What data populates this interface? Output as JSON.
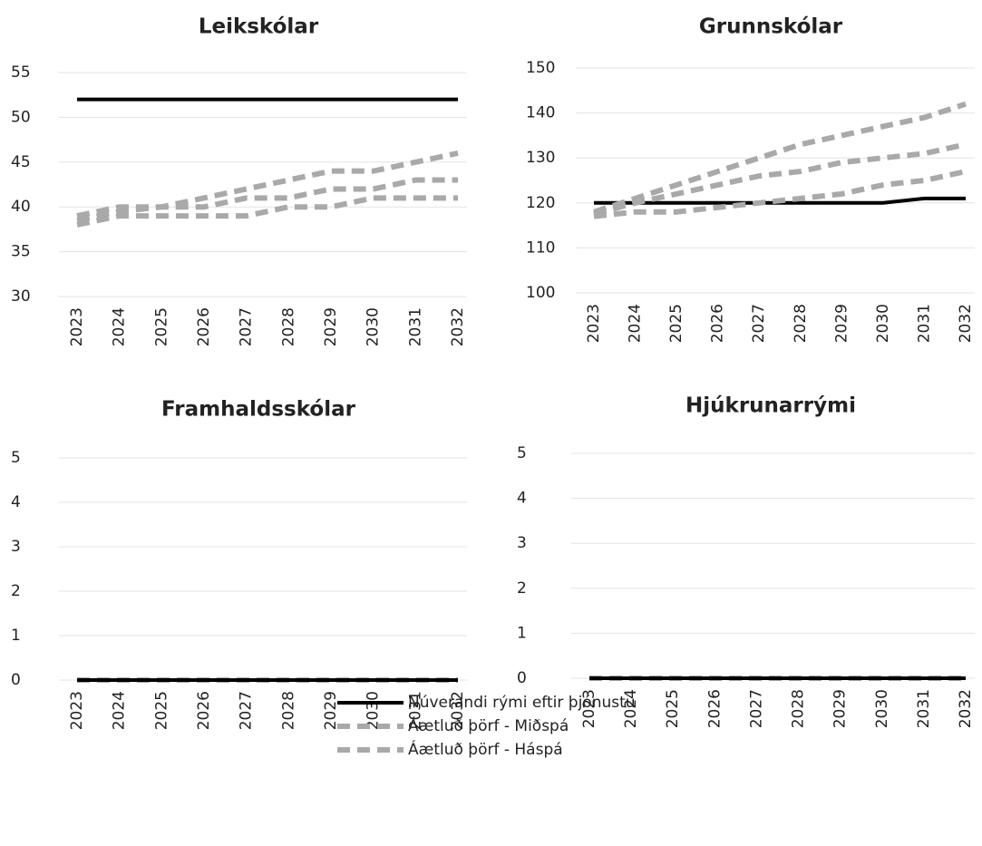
{
  "chart_data": [
    {
      "type": "line",
      "title": "Leikskólar",
      "x": [
        2023,
        2024,
        2025,
        2026,
        2027,
        2028,
        2029,
        2030,
        2031,
        2032
      ],
      "xlim": [
        2023,
        2032
      ],
      "ylim": [
        30,
        55
      ],
      "yticks": [
        30,
        35,
        40,
        45,
        50,
        55
      ],
      "grid": true,
      "series": [
        {
          "name": "Núverandi rými eftir þjónustu",
          "color": "#000000",
          "dashed": false,
          "values": [
            52,
            52,
            52,
            52,
            52,
            52,
            52,
            52,
            52,
            52
          ]
        },
        {
          "name": "Áætluð þörf - Miðspá",
          "color": "#a9a9a9",
          "dashed": true,
          "values": [
            38.5,
            39.5,
            40,
            40,
            41,
            41,
            42,
            42,
            43,
            43
          ]
        },
        {
          "name": "Áætluð þörf - Háspá",
          "color": "#a9a9a9",
          "dashed": true,
          "values": [
            39,
            40,
            40,
            41,
            42,
            43,
            44,
            44,
            45,
            46
          ]
        },
        {
          "color": "#a9a9a9",
          "dashed": true,
          "values": [
            38,
            39,
            39,
            39,
            39,
            40,
            40,
            41,
            41,
            41
          ]
        }
      ]
    },
    {
      "type": "line",
      "title": "Grunnskólar",
      "x": [
        2023,
        2024,
        2025,
        2026,
        2027,
        2028,
        2029,
        2030,
        2031,
        2032
      ],
      "xlim": [
        2023,
        2032
      ],
      "ylim": [
        100,
        150
      ],
      "yticks": [
        100,
        110,
        120,
        130,
        140,
        150
      ],
      "grid": true,
      "series": [
        {
          "color": "#000000",
          "dashed": false,
          "values": [
            120,
            120,
            120,
            120,
            120,
            120,
            120,
            120,
            121,
            121
          ]
        },
        {
          "color": "#a9a9a9",
          "dashed": true,
          "values": [
            117.5,
            120,
            122,
            124,
            126,
            127,
            129,
            130,
            131,
            133
          ]
        },
        {
          "color": "#a9a9a9",
          "dashed": true,
          "values": [
            118,
            121,
            124,
            127,
            130,
            133,
            135,
            137,
            139,
            142
          ]
        },
        {
          "color": "#a9a9a9",
          "dashed": true,
          "values": [
            117,
            118,
            118,
            119,
            120,
            121,
            122,
            124,
            125,
            127
          ]
        }
      ]
    },
    {
      "type": "line",
      "title": "Framhaldsskólar",
      "x": [
        2023,
        2024,
        2025,
        2026,
        2027,
        2028,
        2029,
        2030,
        2031,
        2032
      ],
      "xlim": [
        2023,
        2032
      ],
      "ylim": [
        0,
        5
      ],
      "yticks": [
        0,
        1,
        2,
        3,
        4,
        5
      ],
      "grid": true,
      "series": [
        {
          "color": "#a9a9a9",
          "dashed": true,
          "values": [
            0,
            0,
            0,
            0,
            0,
            0,
            0,
            0,
            0,
            0
          ]
        },
        {
          "color": "#a9a9a9",
          "dashed": true,
          "values": [
            0,
            0,
            0,
            0,
            0,
            0,
            0,
            0,
            0,
            0
          ]
        },
        {
          "color": "#a9a9a9",
          "dashed": true,
          "values": [
            0,
            0,
            0,
            0,
            0,
            0,
            0,
            0,
            0,
            0
          ]
        },
        {
          "color": "#000000",
          "dashed": false,
          "values": [
            0,
            0,
            0,
            0,
            0,
            0,
            0,
            0,
            0,
            0
          ]
        }
      ]
    },
    {
      "type": "line",
      "title": "Hjúkrunarrými",
      "x": [
        2023,
        2024,
        2025,
        2026,
        2027,
        2028,
        2029,
        2030,
        2031,
        2032
      ],
      "xlim": [
        2023,
        2032
      ],
      "ylim": [
        0,
        5
      ],
      "yticks": [
        0,
        1,
        2,
        3,
        4,
        5
      ],
      "grid": true,
      "series": [
        {
          "color": "#a9a9a9",
          "dashed": true,
          "values": [
            0,
            0,
            0,
            0,
            0,
            0,
            0,
            0,
            0,
            0
          ]
        },
        {
          "color": "#a9a9a9",
          "dashed": true,
          "values": [
            0,
            0,
            0,
            0,
            0,
            0,
            0,
            0,
            0,
            0
          ]
        },
        {
          "color": "#a9a9a9",
          "dashed": true,
          "values": [
            0,
            0,
            0,
            0,
            0,
            0,
            0,
            0,
            0,
            0
          ]
        },
        {
          "color": "#000000",
          "dashed": false,
          "values": [
            0,
            0,
            0,
            0,
            0,
            0,
            0,
            0,
            0,
            0
          ]
        }
      ]
    }
  ]
}
